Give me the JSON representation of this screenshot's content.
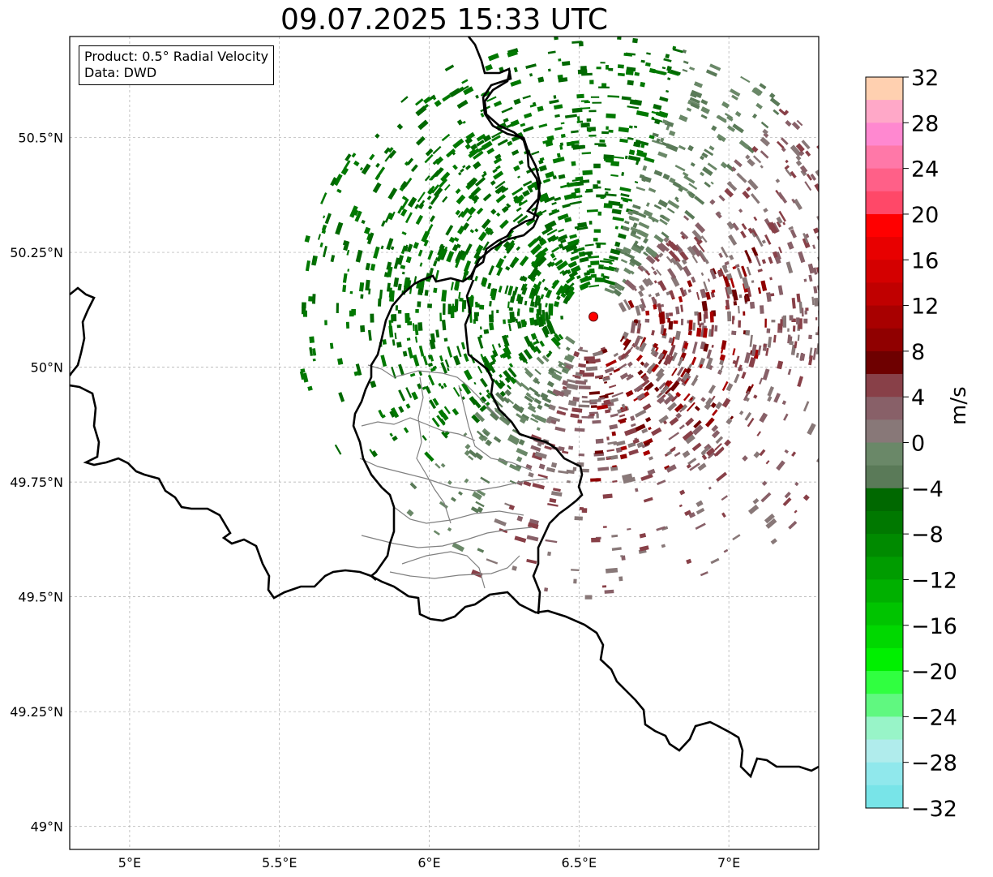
{
  "title": "09.07.2025 15:33 UTC",
  "info": {
    "product": "Product: 0.5° Radial Velocity",
    "data": "Data: DWD"
  },
  "map": {
    "lon_range": [
      4.8,
      7.3
    ],
    "lat_range": [
      48.95,
      50.72
    ],
    "lon_ticks": [
      {
        "value": 5.0,
        "label": "5°E"
      },
      {
        "value": 5.5,
        "label": "5.5°E"
      },
      {
        "value": 6.0,
        "label": "6°E"
      },
      {
        "value": 6.5,
        "label": "6.5°E"
      },
      {
        "value": 7.0,
        "label": "7°E"
      }
    ],
    "lat_ticks": [
      {
        "value": 50.5,
        "label": "50.5°N"
      },
      {
        "value": 50.25,
        "label": "50.25°N"
      },
      {
        "value": 50.0,
        "label": "50°N"
      },
      {
        "value": 49.75,
        "label": "49.75°N"
      },
      {
        "value": 49.5,
        "label": "49.5°N"
      },
      {
        "value": 49.25,
        "label": "49.25°N"
      },
      {
        "value": 49.0,
        "label": "49°N"
      }
    ],
    "gridlines": true,
    "radar_site": {
      "lon": 6.548,
      "lat": 50.11,
      "color": "#ff0000"
    },
    "border_color": "#000000",
    "admin_border_color": "#808080"
  },
  "colorbar": {
    "unit": "m/s",
    "min": -32,
    "max": 32,
    "tick_values": [
      32,
      28,
      24,
      20,
      16,
      12,
      8,
      4,
      0,
      -4,
      -8,
      -12,
      -16,
      -20,
      -24,
      -28,
      -32
    ],
    "tick_labels": [
      "32",
      "28",
      "24",
      "20",
      "16",
      "12",
      "8",
      "4",
      "0",
      "−4",
      "−8",
      "−12",
      "−16",
      "−20",
      "−24",
      "−28",
      "−32"
    ],
    "colors_top_to_bottom": [
      "#ffd0b0",
      "#ffa8c8",
      "#ff88d0",
      "#ff78a8",
      "#ff6088",
      "#ff4868",
      "#ff0000",
      "#e80000",
      "#d40000",
      "#c00000",
      "#a80000",
      "#900000",
      "#6e0000",
      "#884048",
      "#886068",
      "#887878",
      "#6a8868",
      "#5a7a58",
      "#006800",
      "#007800",
      "#008a00",
      "#009c00",
      "#00b000",
      "#00c400",
      "#00d800",
      "#00f000",
      "#30ff40",
      "#60f880",
      "#98f4c8",
      "#b0ecec",
      "#90e8ec",
      "#78e4e8"
    ]
  }
}
